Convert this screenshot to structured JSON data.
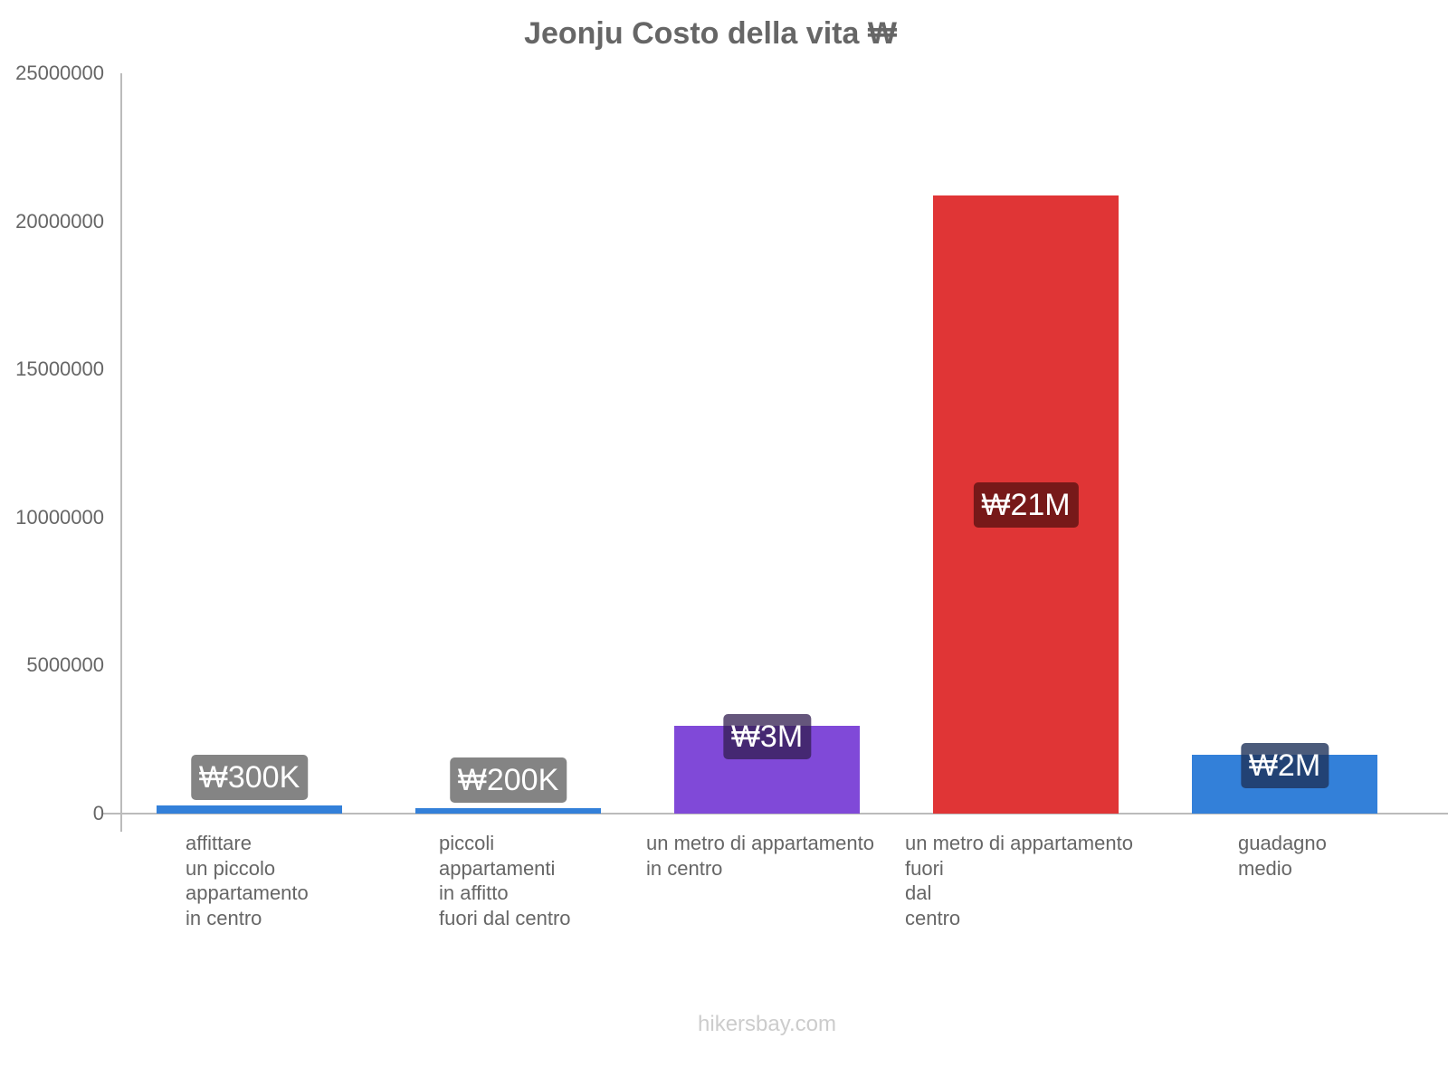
{
  "header": {
    "title": "Jeonju Costo della vita ₩"
  },
  "y_axis": {
    "ticks": [
      {
        "label": "25000000",
        "value": 25000000
      },
      {
        "label": "20000000",
        "value": 20000000
      },
      {
        "label": "15000000",
        "value": 15000000
      },
      {
        "label": "10000000",
        "value": 10000000
      },
      {
        "label": "5000000",
        "value": 5000000
      },
      {
        "label": "0",
        "value": 0
      }
    ]
  },
  "bars": [
    {
      "category": "affittare\nun piccolo\nappartamento\nin centro",
      "value": 275000,
      "label": "₩300K",
      "color": "#3380d9",
      "label_bg": "rgba(110,110,110,0.85)"
    },
    {
      "category": "piccoli\nappartamenti\nin affitto\nfuori dal centro",
      "value": 180000,
      "label": "₩200K",
      "color": "#3380d9",
      "label_bg": "rgba(110,110,110,0.85)"
    },
    {
      "category": "un metro di appartamento\nin centro",
      "value": 2960000,
      "label": "₩3M",
      "color": "#8049d8",
      "label_bg": "rgba(50,30,80,0.75)"
    },
    {
      "category": "un metro di appartamento\nfuori\ndal\ncentro",
      "value": 20870000,
      "label": "₩21M",
      "color": "#e03536",
      "label_bg": "rgba(100,20,20,0.85)"
    },
    {
      "category": "guadagno\nmedio",
      "value": 1990000,
      "label": "₩2M",
      "color": "#3380d9",
      "label_bg": "rgba(30,50,90,0.8)"
    }
  ],
  "footer": {
    "watermark": "hikersbay.com"
  },
  "chart_data": {
    "type": "bar",
    "title": "Jeonju Costo della vita ₩",
    "categories": [
      "affittare un piccolo appartamento in centro",
      "piccoli appartamenti in affitto fuori dal centro",
      "un metro di appartamento in centro",
      "un metro di appartamento fuori dal centro",
      "guadagno medio"
    ],
    "values": [
      275000,
      180000,
      2960000,
      20870000,
      1990000
    ],
    "data_labels": [
      "₩300K",
      "₩200K",
      "₩3M",
      "₩21M",
      "₩2M"
    ],
    "colors": [
      "#3380d9",
      "#3380d9",
      "#8049d8",
      "#e03536",
      "#3380d9"
    ],
    "xlabel": "",
    "ylabel": "",
    "ylim": [
      0,
      25000000
    ],
    "yticks": [
      0,
      5000000,
      10000000,
      15000000,
      20000000,
      25000000
    ],
    "grid": false,
    "legend": null,
    "annotations": [
      "hikersbay.com"
    ]
  }
}
